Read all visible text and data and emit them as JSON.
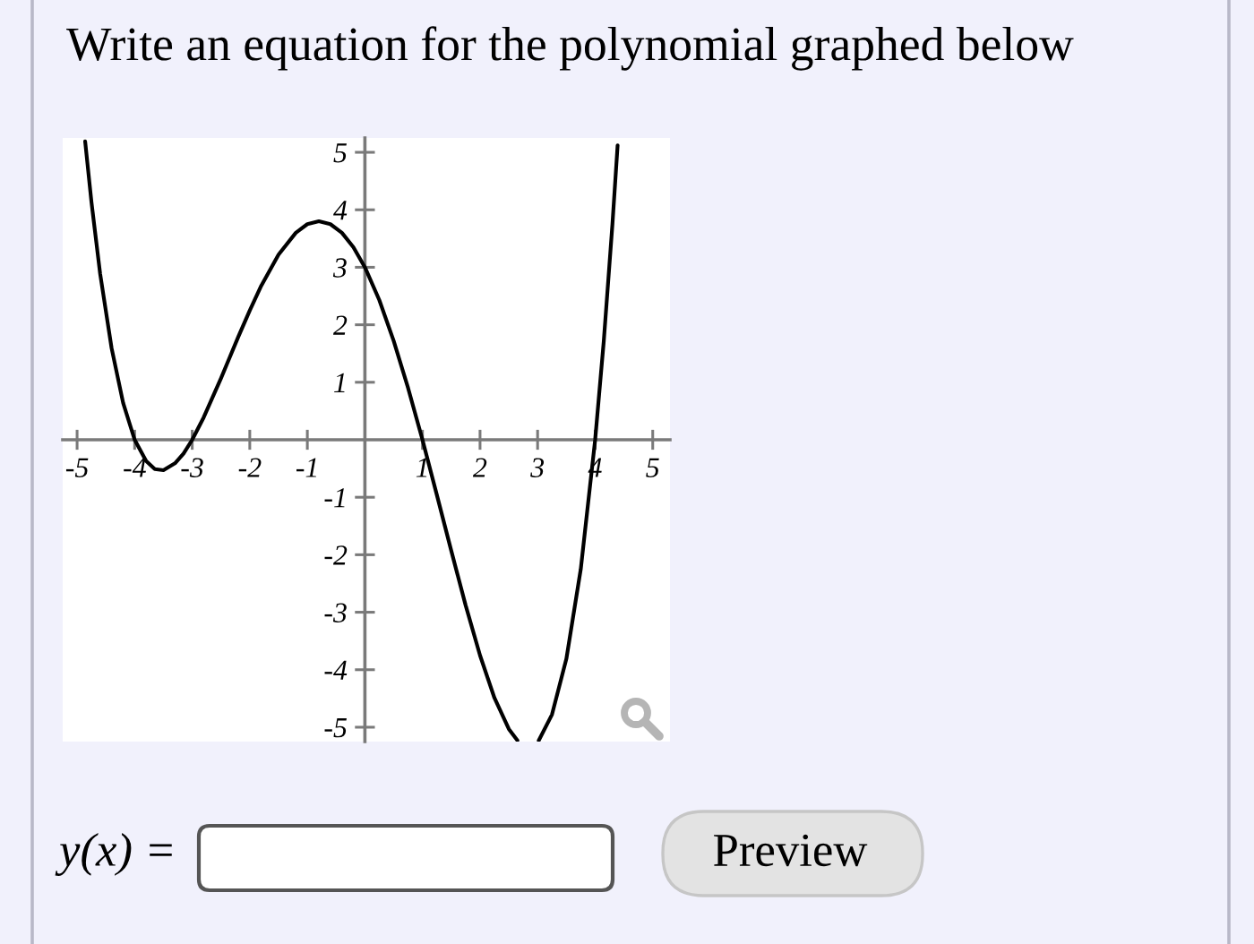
{
  "chart_data": {
    "type": "line",
    "title": "Write an equation for the polynomial graphed below",
    "annotations": [
      "y(x) =",
      "Preview"
    ],
    "x": [
      -4.86,
      -4.75,
      -4.6,
      -4.4,
      -4.2,
      -4.0,
      -3.8,
      -3.65,
      -3.5,
      -3.3,
      -3.15,
      -3.0,
      -2.8,
      -2.5,
      -2.2,
      -2.0,
      -1.8,
      -1.5,
      -1.2,
      -1.0,
      -0.8,
      -0.6,
      -0.4,
      -0.2,
      0,
      0.25,
      0.5,
      0.75,
      1.0,
      1.25,
      1.5,
      1.75,
      2.0,
      2.25,
      2.5,
      2.65,
      2.85,
      3.02,
      3.25,
      3.5,
      3.75,
      4.0,
      4.15,
      4.3,
      4.39
    ],
    "series": [
      {
        "color": "#000000",
        "values": [
          5.19,
          4.13,
          2.89,
          1.59,
          0.64,
          0,
          -0.37,
          -0.51,
          -0.53,
          -0.41,
          -0.24,
          0,
          0.39,
          1.07,
          1.79,
          2.25,
          2.68,
          3.22,
          3.6,
          3.75,
          3.8,
          3.75,
          3.6,
          3.35,
          3.0,
          2.43,
          1.72,
          0.9,
          0,
          -0.96,
          -1.93,
          -2.88,
          -3.75,
          -4.49,
          -5.03,
          -5.23,
          null,
          -5.23,
          -4.78,
          -3.81,
          -2.25,
          0,
          1.72,
          3.75,
          5.12
        ]
      }
    ],
    "xlim": [
      -5.25,
      5.3
    ],
    "ylim": [
      -5.25,
      5.25
    ],
    "xticks": [
      -5,
      -4,
      -3,
      -2,
      -1,
      1,
      2,
      3,
      4,
      5
    ],
    "yticks": [
      -5,
      -4,
      -3,
      -2,
      -1,
      1,
      2,
      3,
      4,
      5
    ],
    "line_style": "solid"
  }
}
